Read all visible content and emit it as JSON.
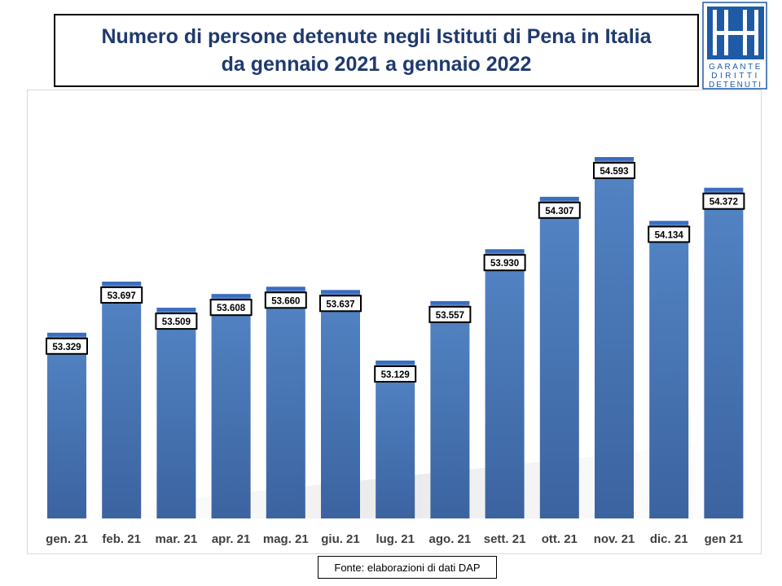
{
  "header": {
    "title_line1": "Numero di persone detenute negli Istituti di Pena in Italia",
    "title_line2": "da gennaio 2021 a gennaio 2022"
  },
  "logo": {
    "line1": "GARANTE",
    "line2": "DIRITTI",
    "line3": "DETENUTI",
    "color": "#1f5aa6"
  },
  "footer": {
    "source": "Fonte: elaborazioni di dati DAP"
  },
  "chart_data": {
    "type": "bar",
    "categories": [
      "gen. 21",
      "feb. 21",
      "mar. 21",
      "apr. 21",
      "mag. 21",
      "giu. 21",
      "lug. 21",
      "ago. 21",
      "sett. 21",
      "ott. 21",
      "nov. 21",
      "dic. 21",
      "gen 21"
    ],
    "values": [
      53329,
      53697,
      53509,
      53608,
      53660,
      53637,
      53129,
      53557,
      53930,
      54307,
      54593,
      54134,
      54372
    ],
    "value_labels": [
      "53.329",
      "53.697",
      "53.509",
      "53.608",
      "53.660",
      "53.637",
      "53.129",
      "53.557",
      "53.930",
      "54.307",
      "54.593",
      "54.134",
      "54.372"
    ],
    "title": "Numero di persone detenute negli Istituti di Pena in Italia da gennaio 2021 a gennaio 2022",
    "xlabel": "",
    "ylabel": "",
    "grid": false,
    "bar_color": "#4a78b8",
    "bar_top_color": "#3a6cc0"
  }
}
